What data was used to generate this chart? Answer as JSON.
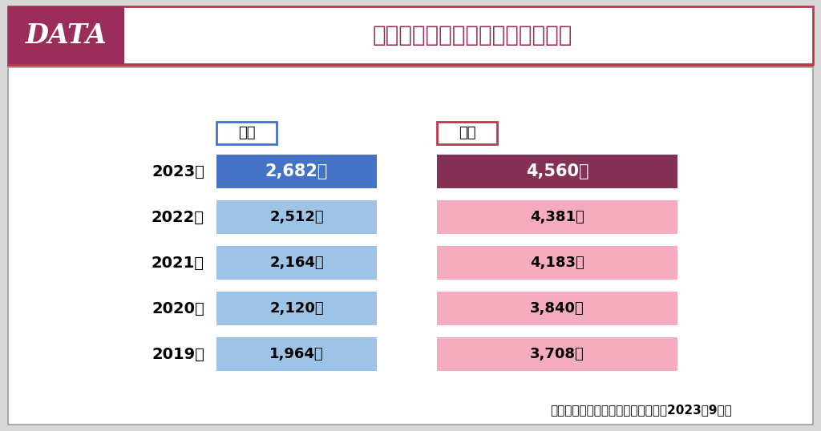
{
  "title": "白髪染めにかけてもよい金額は？",
  "data_label": "DATA",
  "years": [
    "2023年",
    "2022年",
    "2021年",
    "2020年",
    "2019年"
  ],
  "male_values": [
    2682,
    2512,
    2164,
    2120,
    1964
  ],
  "female_values": [
    4560,
    4381,
    4183,
    3840,
    3708
  ],
  "male_labels": [
    "2,682円",
    "2,512円",
    "2,164円",
    "2,120円",
    "1,964円"
  ],
  "female_labels": [
    "4,560円",
    "4,381円",
    "4,183円",
    "3,840円",
    "3,708円"
  ],
  "male_color_2023": "#4472C4",
  "male_color_other": "#9DC3E6",
  "female_color_2023": "#843155",
  "female_color_other": "#F4ACBE",
  "male_legend_border": "#4472C4",
  "female_legend_border": "#C0364A",
  "male_legend_label": "男性",
  "female_legend_label": "女性",
  "header_bg": "#9B2D5A",
  "header_border": "#C0364A",
  "source_text": "出典：「白髪に関する意識調査」（2023年9月）",
  "outer_bg": "#D8D8D8",
  "inner_bg": "#FFFFFF",
  "inner_border": "#AAAAAA"
}
